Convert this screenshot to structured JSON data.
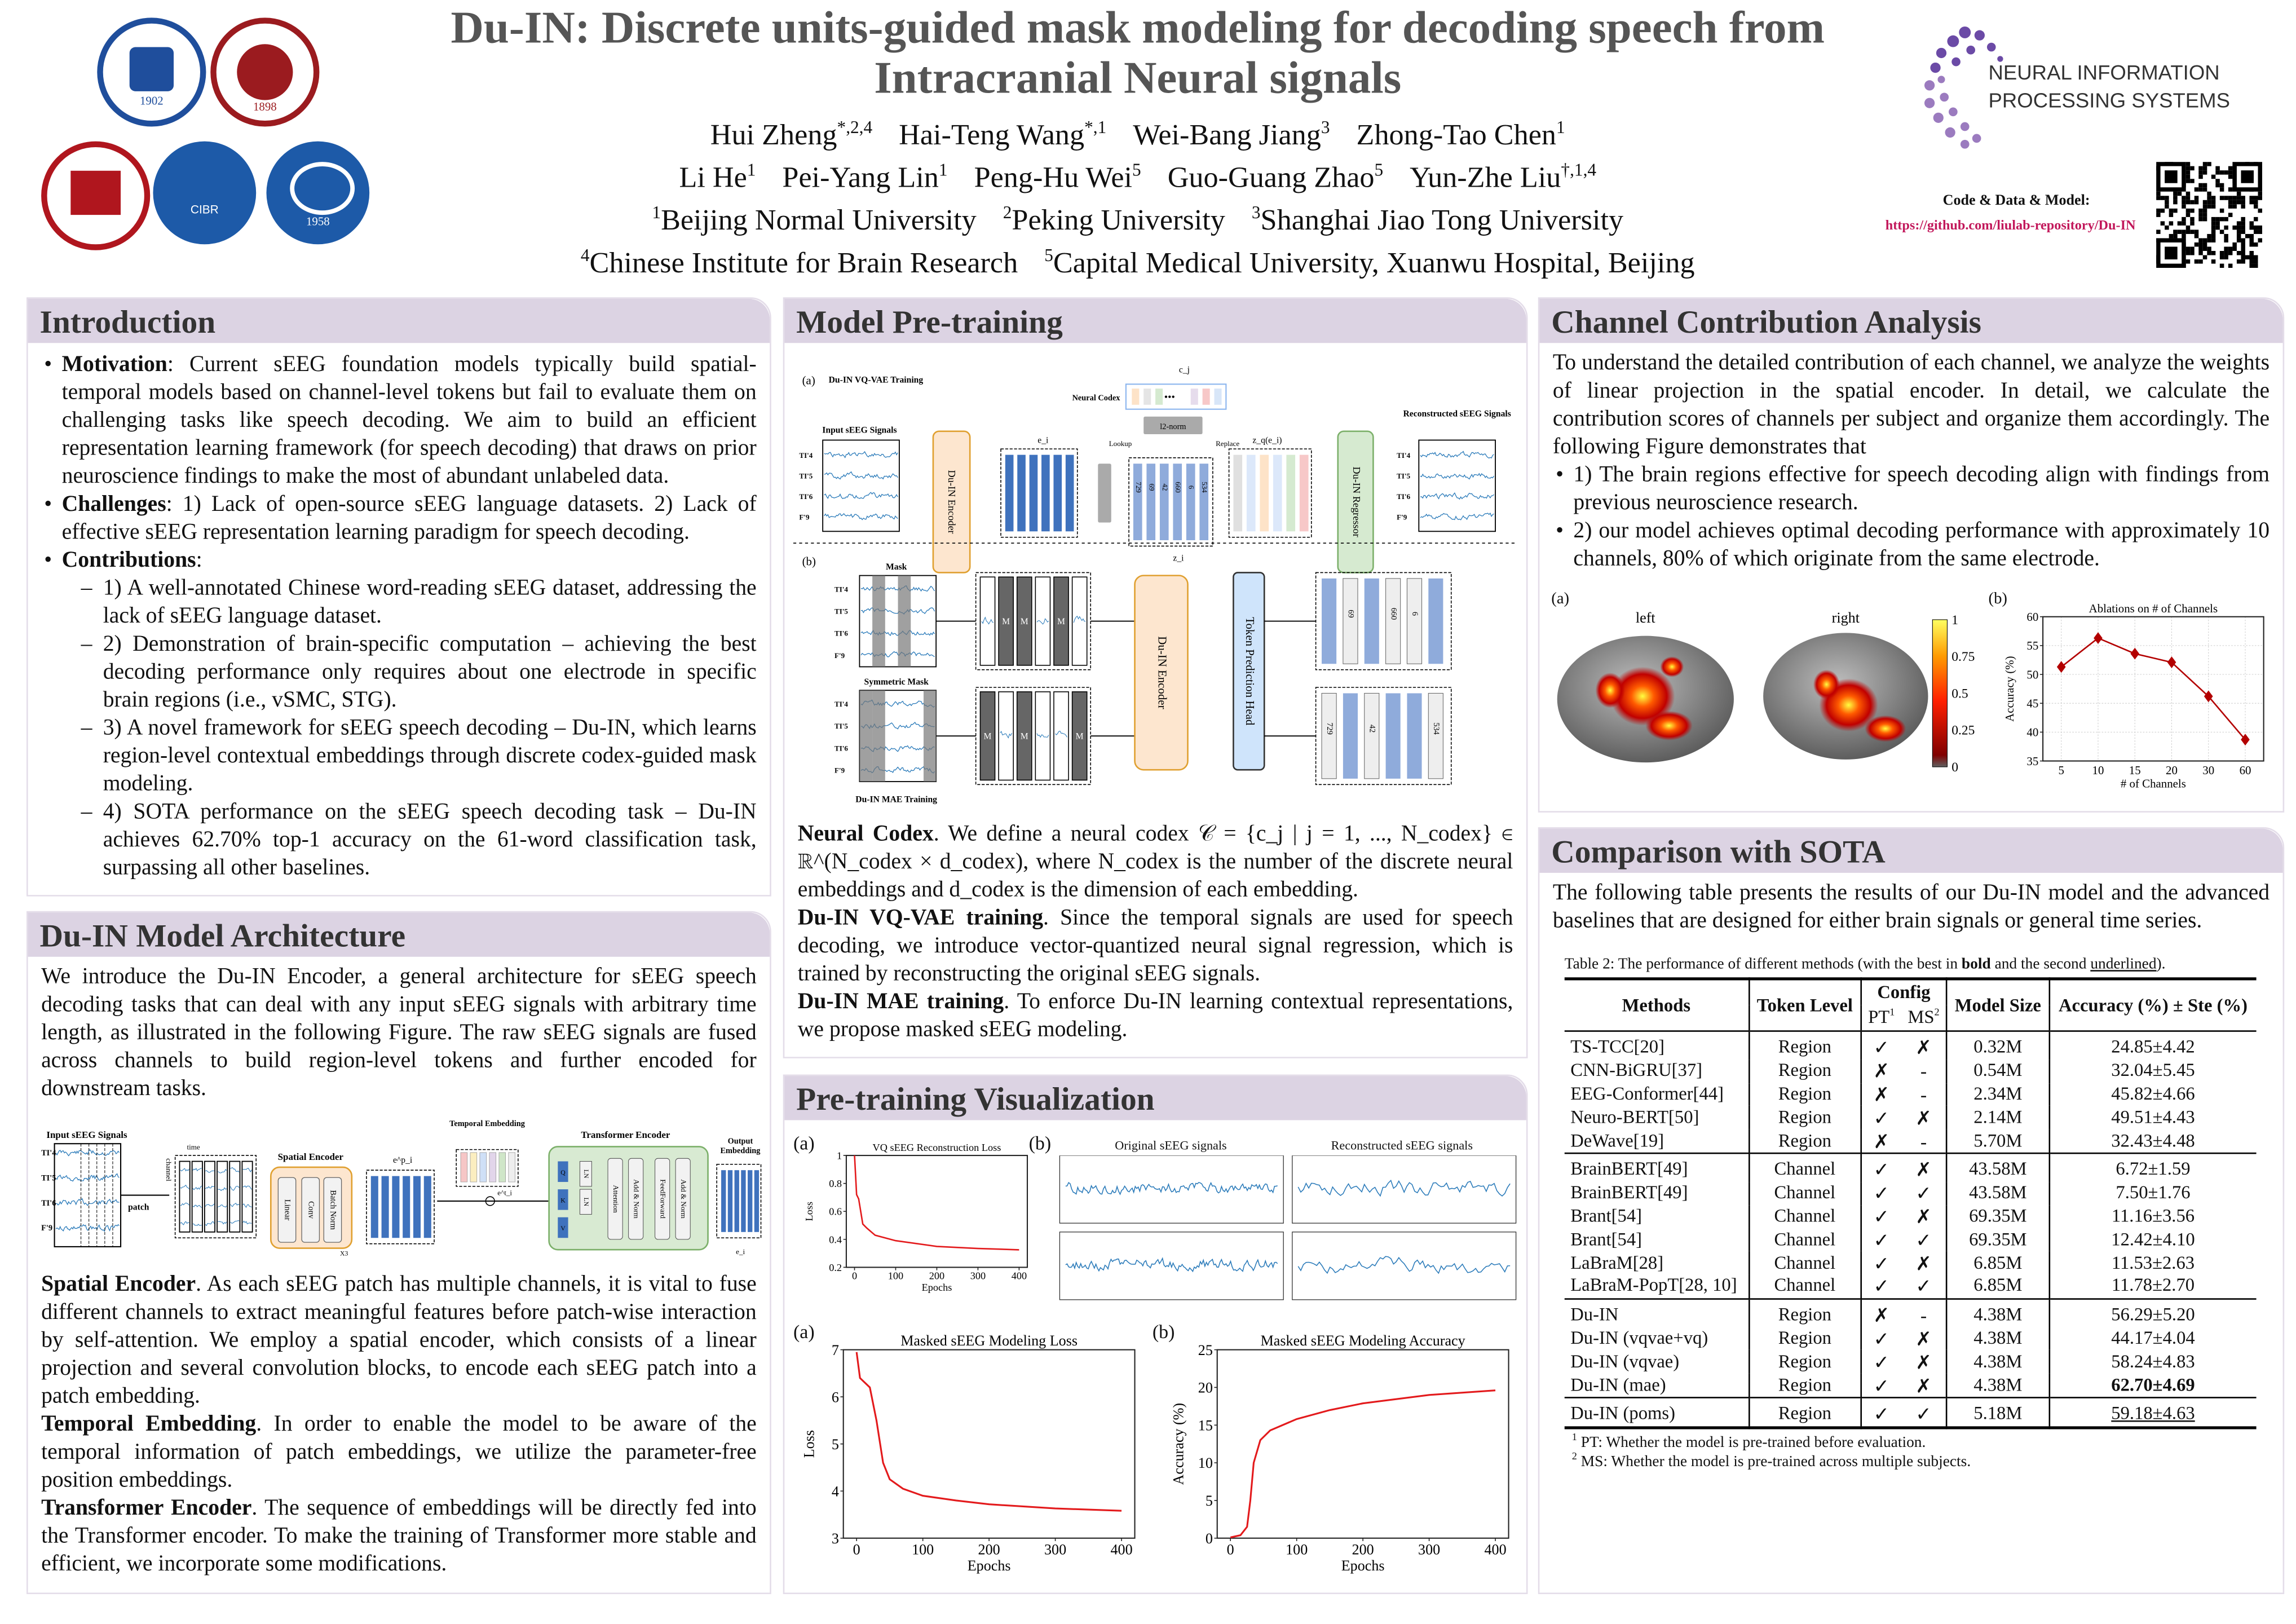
{
  "header": {
    "title": "Du-IN: Discrete units-guided mask modeling for decoding speech from Intracranial Neural signals",
    "authors_line1": [
      {
        "name": "Hui Zheng",
        "sup": "*,2,4"
      },
      {
        "name": "Hai-Teng Wang",
        "sup": "*,1"
      },
      {
        "name": "Wei-Bang Jiang",
        "sup": "3"
      },
      {
        "name": "Zhong-Tao Chen",
        "sup": "1"
      }
    ],
    "authors_line2": [
      {
        "name": "Li He",
        "sup": "1"
      },
      {
        "name": "Pei-Yang Lin",
        "sup": "1"
      },
      {
        "name": "Peng-Hu Wei",
        "sup": "5"
      },
      {
        "name": "Guo-Guang Zhao",
        "sup": "5"
      },
      {
        "name": "Yun-Zhe Liu",
        "sup": "†,1,4"
      }
    ],
    "affiliations_line1": [
      {
        "sup": "1",
        "name": "Beijing Normal University"
      },
      {
        "sup": "2",
        "name": "Peking University"
      },
      {
        "sup": "3",
        "name": "Shanghai Jiao Tong University"
      }
    ],
    "affiliations_line2": [
      {
        "sup": "4",
        "name": "Chinese Institute for Brain Research"
      },
      {
        "sup": "5",
        "name": "Capital Medical University, Xuanwu Hospital, Beijing"
      }
    ],
    "logos": [
      {
        "name": "Beijing Normal University",
        "year": "1902",
        "color": "#1f4e9c"
      },
      {
        "name": "Peking University",
        "year": "1898",
        "color": "#9b1b1f"
      },
      {
        "name": "Shanghai Jiao Tong University",
        "color": "#b0161e"
      },
      {
        "name": "CIBR",
        "color": "#1d5aa8"
      },
      {
        "name": "Capital Medical University",
        "year": "1958",
        "color": "#1d5aa8"
      }
    ],
    "neurips_logo": {
      "line1": "NEURAL INFORMATION",
      "line2": "PROCESSING SYSTEMS",
      "color": "#6b4aa6"
    },
    "code_label": "Code & Data & Model:",
    "code_url": "https://github.com/liulab-repository/Du-IN",
    "url_color": "#c2185b"
  },
  "intro": {
    "title": "Introduction",
    "motivation_label": "Motivation",
    "motivation": ": Current sEEG foundation models typically build spatial-temporal models based on channel-level tokens but fail to evaluate them on challenging tasks like speech decoding. We aim to build an efficient representation learning framework (for speech decoding) that draws on prior neuroscience findings to make the most of abundant unlabeled data.",
    "challenges_label": "Challenges",
    "challenges": ": 1) Lack of open-source sEEG language datasets. 2) Lack of effective sEEG representation learning paradigm for speech decoding.",
    "contributions_label": "Contributions",
    "contributions_colon": ":",
    "contributions": [
      "1) A well-annotated Chinese word-reading sEEG dataset, addressing the lack of sEEG language dataset.",
      "2) Demonstration of brain-specific computation – achieving the best decoding performance only requires about one electrode in specific brain regions (i.e., vSMC, STG).",
      "3) A novel framework for sEEG speech decoding – Du-IN, which learns region-level contextual embeddings through discrete codex-guided mask modeling.",
      "4) SOTA performance on the sEEG speech decoding task – Du-IN achieves 62.70% top-1 accuracy on the 61-word classification task, surpassing all other baselines."
    ]
  },
  "architecture": {
    "title": "Du-IN Model Architecture",
    "intro": "We introduce the Du-IN Encoder, a general architecture for sEEG speech decoding tasks that can deal with any input sEEG signals with arbitrary time length, as illustrated in the following Figure. The raw sEEG signals are fused across channels to build region-level tokens and further encoded for downstream tasks.",
    "figure": {
      "input_label": "Input sEEG Signals",
      "channels": [
        "TI'4",
        "TI'5",
        "TI'6",
        "F'9"
      ],
      "time_label": "time",
      "channel_label": "channel",
      "patch_label": "patch",
      "spatial_encoder": "Spatial Encoder",
      "linear": "Linear",
      "conv": "Conv",
      "batch_norm": "Batch Norm",
      "repeat": "X3",
      "ep_label": "e^p_i",
      "temporal_embedding": "Temporal Embedding",
      "et_label": "e^t_i",
      "transformer_encoder": "Transformer Encoder",
      "q": "Q",
      "k": "K",
      "v": "V",
      "ln": "LN",
      "attention": "Attention",
      "add_norm": "Add & Norm",
      "feedforward": "FeedForward",
      "output_embedding": "Output Embedding",
      "ei_label": "e_i"
    },
    "spatial_label": "Spatial Encoder",
    "spatial": ". As each sEEG patch has multiple channels, it is vital to fuse different channels to extract meaningful features before patch-wise interaction by self-attention. We employ a spatial encoder, which consists of a linear projection and several convolution blocks, to encode each sEEG patch into a patch embedding.",
    "temporal_label": "Temporal Embedding",
    "temporal": ". In order to enable the model to be aware of the temporal information of patch embeddings, we utilize the parameter-free position embeddings.",
    "transformer_label": "Transformer Encoder",
    "transformer": ". The sequence of embeddings will be directly fed into the Transformer encoder. To make the training of Transformer more stable and efficient, we incorporate some modifications."
  },
  "pretraining": {
    "title": "Model Pre-training",
    "figure": {
      "a_label": "(a)",
      "a_title": "Du-IN VQ-VAE Training",
      "neural_codex": "Neural Codex",
      "cj": "c_j",
      "input_label": "Input sEEG Signals",
      "channels": [
        "TI'4",
        "TI'5",
        "TI'6",
        "F'9"
      ],
      "encoder": "Du-IN Encoder",
      "ei": "e_i",
      "l2norm": "l2-norm",
      "lookup": "Lookup",
      "replace": "Replace",
      "codes": [
        "729",
        "69",
        "42",
        "660",
        "6",
        "534"
      ],
      "zi": "z_i",
      "zq": "z_q(e_i)",
      "regressor": "Du-IN Regressor",
      "recon_label": "Reconstructed sEEG Signals",
      "b_label": "(b)",
      "mask": "Mask",
      "symmetric_mask": "Symmetric Mask",
      "m": "M",
      "token_head": "Token Prediction Head",
      "b_title": "Du-IN MAE Training"
    },
    "codex_label": "Neural Codex",
    "codex": ". We define a neural codex 𝒞 = {c_j | j = 1, ..., N_codex} ∈ ℝ^(N_codex × d_codex), where N_codex is the number of the discrete neural embeddings and d_codex is the dimension of each embedding.",
    "vqvae_label": "Du-IN VQ-VAE training",
    "vqvae": ". Since the temporal signals are used for speech decoding, we introduce vector-quantized neural signal regression, which is trained by reconstructing the original sEEG signals.",
    "mae_label": "Du-IN MAE training",
    "mae": ". To enforce Du-IN learning contextual representations, we propose masked sEEG modeling."
  },
  "visualization": {
    "title": "Pre-training Visualization",
    "a_label": "(a)",
    "b_label": "(b)",
    "original_title": "Original sEEG signals",
    "reconstructed_title": "Reconstructed sEEG signals"
  },
  "channel": {
    "title": "Channel Contribution Analysis",
    "intro": "To understand the detailed contribution of each channel, we analyze the weights of linear projection in the spatial encoder. In detail, we calculate the contribution scores of channels per subject and organize them accordingly. The following Figure demonstrates that",
    "points": [
      "1) The brain regions effective for speech decoding align with findings from previous neuroscience research.",
      "2) our model achieves optimal decoding performance with approximately 10 channels, 80% of which originate from the same electrode."
    ],
    "a_label": "(a)",
    "b_label": "(b)",
    "left_label": "left",
    "right_label": "right",
    "colorbar_ticks": [
      "0",
      "0.25",
      "0.5",
      "0.75",
      "1"
    ]
  },
  "sota": {
    "title": "Comparison with SOTA",
    "intro": "The following table presents the results of our Du-IN model and the advanced baselines that are designed for either brain signals or general time series.",
    "caption_pre": "Table 2: The performance of different methods (with the best in ",
    "caption_bold": "bold",
    "caption_mid": " and the second ",
    "caption_underline": "underlined",
    "caption_post": ").",
    "headers": {
      "methods": "Methods",
      "token_level": "Token Level",
      "config": "Config",
      "pt": "PT",
      "pt_sup": "1",
      "ms": "MS",
      "ms_sup": "2",
      "model_size": "Model Size",
      "accuracy": "Accuracy (%) ± Ste (%)"
    },
    "groups": [
      [
        {
          "method": "TS-TCC[20]",
          "level": "Region",
          "pt": "✓",
          "ms": "✗",
          "size": "0.32M",
          "acc": "24.85±4.42"
        },
        {
          "method": "CNN-BiGRU[37]",
          "level": "Region",
          "pt": "✗",
          "ms": "-",
          "size": "0.54M",
          "acc": "32.04±5.45"
        },
        {
          "method": "EEG-Conformer[44]",
          "level": "Region",
          "pt": "✗",
          "ms": "-",
          "size": "2.34M",
          "acc": "45.82±4.66"
        },
        {
          "method": "Neuro-BERT[50]",
          "level": "Region",
          "pt": "✓",
          "ms": "✗",
          "size": "2.14M",
          "acc": "49.51±4.43"
        },
        {
          "method": "DeWave[19]",
          "level": "Region",
          "pt": "✗",
          "ms": "-",
          "size": "5.70M",
          "acc": "32.43±4.48"
        }
      ],
      [
        {
          "method": "BrainBERT[49]",
          "level": "Channel",
          "pt": "✓",
          "ms": "✗",
          "size": "43.58M",
          "acc": "6.72±1.59"
        },
        {
          "method": "BrainBERT[49]",
          "level": "Channel",
          "pt": "✓",
          "ms": "✓",
          "size": "43.58M",
          "acc": "7.50±1.76"
        },
        {
          "method": "Brant[54]",
          "level": "Channel",
          "pt": "✓",
          "ms": "✗",
          "size": "69.35M",
          "acc": "11.16±3.56"
        },
        {
          "method": "Brant[54]",
          "level": "Channel",
          "pt": "✓",
          "ms": "✓",
          "size": "69.35M",
          "acc": "12.42±4.10"
        },
        {
          "method": "LaBraM[28]",
          "level": "Channel",
          "pt": "✓",
          "ms": "✗",
          "size": "6.85M",
          "acc": "11.53±2.63"
        },
        {
          "method": "LaBraM-PopT[28, 10]",
          "level": "Channel",
          "pt": "✓",
          "ms": "✓",
          "size": "6.85M",
          "acc": "11.78±2.70"
        }
      ],
      [
        {
          "method": "Du-IN",
          "level": "Region",
          "pt": "✗",
          "ms": "-",
          "size": "4.38M",
          "acc": "56.29±5.20"
        },
        {
          "method": "Du-IN (vqvae+vq)",
          "level": "Region",
          "pt": "✓",
          "ms": "✗",
          "size": "4.38M",
          "acc": "44.17±4.04"
        },
        {
          "method": "Du-IN (vqvae)",
          "level": "Region",
          "pt": "✓",
          "ms": "✗",
          "size": "4.38M",
          "acc": "58.24±4.83"
        },
        {
          "method": "Du-IN (mae)",
          "level": "Region",
          "pt": "✓",
          "ms": "✗",
          "size": "4.38M",
          "acc": "62.70±4.69",
          "best": true
        }
      ],
      [
        {
          "method": "Du-IN (poms)",
          "level": "Region",
          "pt": "✓",
          "ms": "✓",
          "size": "5.18M",
          "acc": "59.18±4.63",
          "second": true
        }
      ]
    ],
    "footnotes": [
      {
        "sup": "1",
        "text": "PT: Whether the model is pre-trained before evaluation."
      },
      {
        "sup": "2",
        "text": "MS: Whether the model is pre-trained across multiple subjects."
      }
    ]
  },
  "chart_data": [
    {
      "id": "ablation",
      "type": "line",
      "title": "Ablations on # of Channels",
      "xlabel": "# of Channels",
      "ylabel": "Accuracy (%)",
      "categories": [
        "5",
        "10",
        "15",
        "20",
        "30",
        "60"
      ],
      "values": [
        51.3,
        56.3,
        53.6,
        52.1,
        46.2,
        38.7
      ],
      "ylim": [
        35,
        60
      ],
      "yticks": [
        35,
        40,
        45,
        50,
        55,
        60
      ],
      "grid": true,
      "marker": "diamond",
      "color": "#b30000"
    },
    {
      "id": "vq_loss",
      "type": "line",
      "title": "VQ sEEG Reconstruction Loss",
      "xlabel": "Epochs",
      "ylabel": "Loss",
      "x": [
        0,
        5,
        10,
        15,
        20,
        30,
        50,
        100,
        200,
        300,
        400
      ],
      "y": [
        1.0,
        0.72,
        0.69,
        0.6,
        0.51,
        0.48,
        0.43,
        0.39,
        0.35,
        0.335,
        0.325
      ],
      "xlim": [
        -20,
        420
      ],
      "ylim": [
        0.2,
        1.0
      ],
      "xticks": [
        0,
        100,
        200,
        300,
        400
      ],
      "yticks": [
        0.2,
        0.4,
        0.6,
        0.8,
        1.0
      ],
      "color": "#e31a1c"
    },
    {
      "id": "mae_loss",
      "type": "line",
      "title": "Masked sEEG Modeling Loss",
      "xlabel": "Epochs",
      "ylabel": "Loss",
      "x": [
        0,
        5,
        20,
        30,
        40,
        50,
        70,
        100,
        150,
        200,
        300,
        400
      ],
      "y": [
        6.95,
        6.4,
        6.2,
        5.5,
        4.6,
        4.25,
        4.05,
        3.9,
        3.8,
        3.72,
        3.63,
        3.58
      ],
      "xlim": [
        -20,
        420
      ],
      "ylim": [
        3,
        7
      ],
      "xticks": [
        0,
        100,
        200,
        300,
        400
      ],
      "yticks": [
        3,
        4,
        5,
        6,
        7
      ],
      "color": "#e31a1c"
    },
    {
      "id": "mae_acc",
      "type": "line",
      "title": "Masked sEEG Modeling Accuracy",
      "xlabel": "Epochs",
      "ylabel": "Accuracy (%)",
      "x": [
        0,
        15,
        25,
        30,
        35,
        45,
        60,
        100,
        150,
        200,
        300,
        400
      ],
      "y": [
        0.1,
        0.4,
        1.5,
        5,
        10,
        13,
        14.3,
        15.8,
        17,
        17.9,
        19.0,
        19.6
      ],
      "xlim": [
        -20,
        420
      ],
      "ylim": [
        0,
        25
      ],
      "xticks": [
        0,
        100,
        200,
        300,
        400
      ],
      "yticks": [
        0,
        5,
        10,
        15,
        20,
        25
      ],
      "color": "#e31a1c"
    }
  ]
}
